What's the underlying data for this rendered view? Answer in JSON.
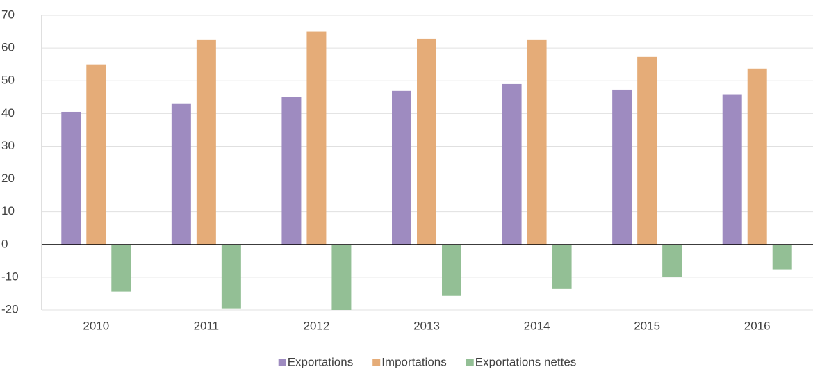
{
  "chart_data": {
    "type": "bar",
    "categories": [
      "2010",
      "2011",
      "2012",
      "2013",
      "2014",
      "2015",
      "2016"
    ],
    "series": [
      {
        "name": "Exportations",
        "color": "#9e8bc0",
        "values": [
          40.5,
          43.1,
          45,
          46.9,
          49,
          47.3,
          45.9
        ]
      },
      {
        "name": "Importations",
        "color": "#e5ac78",
        "values": [
          55,
          62.6,
          65,
          62.8,
          62.6,
          57.3,
          53.7
        ]
      },
      {
        "name": "Exportations nettes",
        "color": "#93bf95",
        "values": [
          -14.4,
          -19.5,
          -20,
          -15.7,
          -13.6,
          -10,
          -7.6
        ]
      }
    ],
    "ylim": [
      -20,
      70
    ],
    "yticks": [
      -20,
      -10,
      0,
      10,
      20,
      30,
      40,
      50,
      60,
      70
    ],
    "grid": true,
    "legend": "bottom"
  }
}
